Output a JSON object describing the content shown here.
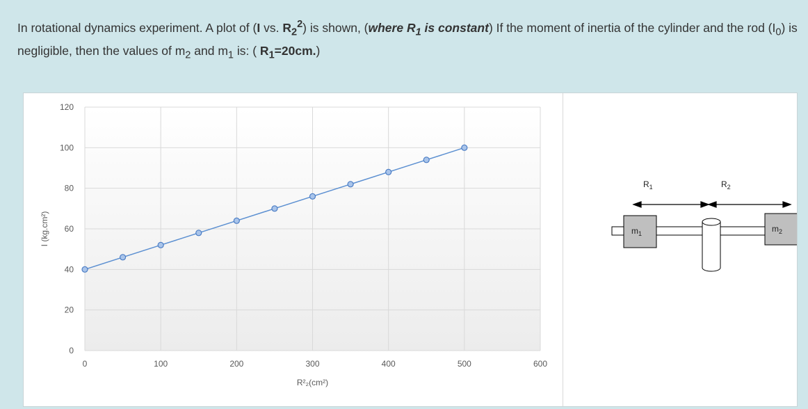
{
  "question": {
    "p1": "In rotational dynamics experiment. A plot of (",
    "b1": "I",
    "p2": " vs. ",
    "b2": "R",
    "b2sub": "2",
    "b2sup": "2",
    "p3": ") is shown, (",
    "bi1": "where R",
    "bi1sub": "1",
    "bi2": " is constant",
    "p4": ") If the moment of inertia of the cylinder and the rod (I",
    "p4sub": "0",
    "p5": ") is negligible, then the values of m",
    "p5sub": "2",
    "p6": " and m",
    "p6sub": "1",
    "p7": " is: ( ",
    "b3": "R",
    "b3sub": "1",
    "b4": "=20cm.",
    "p8": ")"
  },
  "chart_data": {
    "type": "line",
    "title": "",
    "xlabel": "R²₂(cm²)",
    "ylabel": "I (kg.cm²)",
    "xlim": [
      0,
      600
    ],
    "ylim": [
      0,
      120
    ],
    "xticks": [
      0,
      100,
      200,
      300,
      400,
      500,
      600
    ],
    "yticks": [
      0,
      20,
      40,
      60,
      80,
      100,
      120
    ],
    "grid": true,
    "series": [
      {
        "x": [
          0,
          50,
          100,
          150,
          200,
          250,
          300,
          350,
          400,
          450,
          500
        ],
        "y": [
          40,
          46,
          52,
          58,
          64,
          70,
          76,
          82,
          88,
          94,
          100
        ]
      }
    ],
    "colors": {
      "line": "#5b8fd1",
      "marker_fill": "#a9c4ea",
      "marker_stroke": "#4a7cc4",
      "grid": "#d9d9d9"
    }
  },
  "diagram": {
    "label_r1": "R",
    "label_r1_sub": "1",
    "label_r2": "R",
    "label_r2_sub": "2",
    "label_m1": "m",
    "label_m1_sub": "1",
    "label_m2": "m",
    "label_m2_sub": "2"
  }
}
